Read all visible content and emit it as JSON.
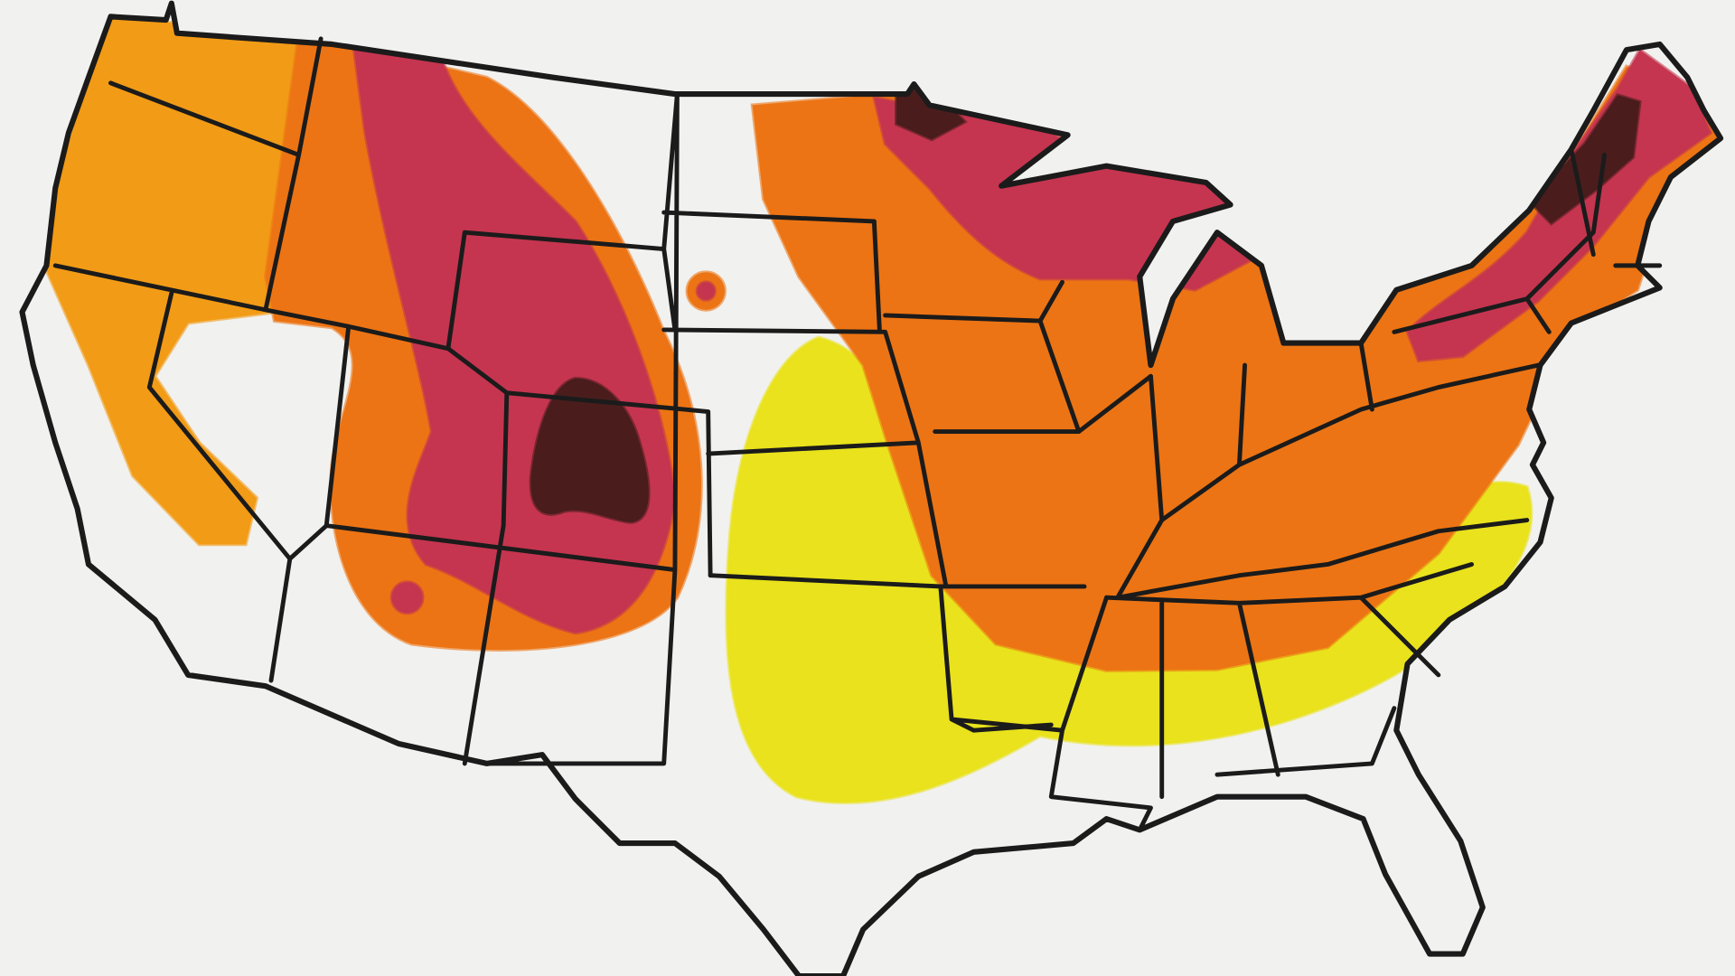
{
  "map": {
    "colors": {
      "background": "#f1f1ef",
      "outline": "#1b1b1b",
      "yellow": "#e9e21c",
      "light_orange": "#f29b16",
      "orange": "#ec7414",
      "crimson": "#c5354f",
      "dark_brown": "#4a1d1c"
    }
  }
}
